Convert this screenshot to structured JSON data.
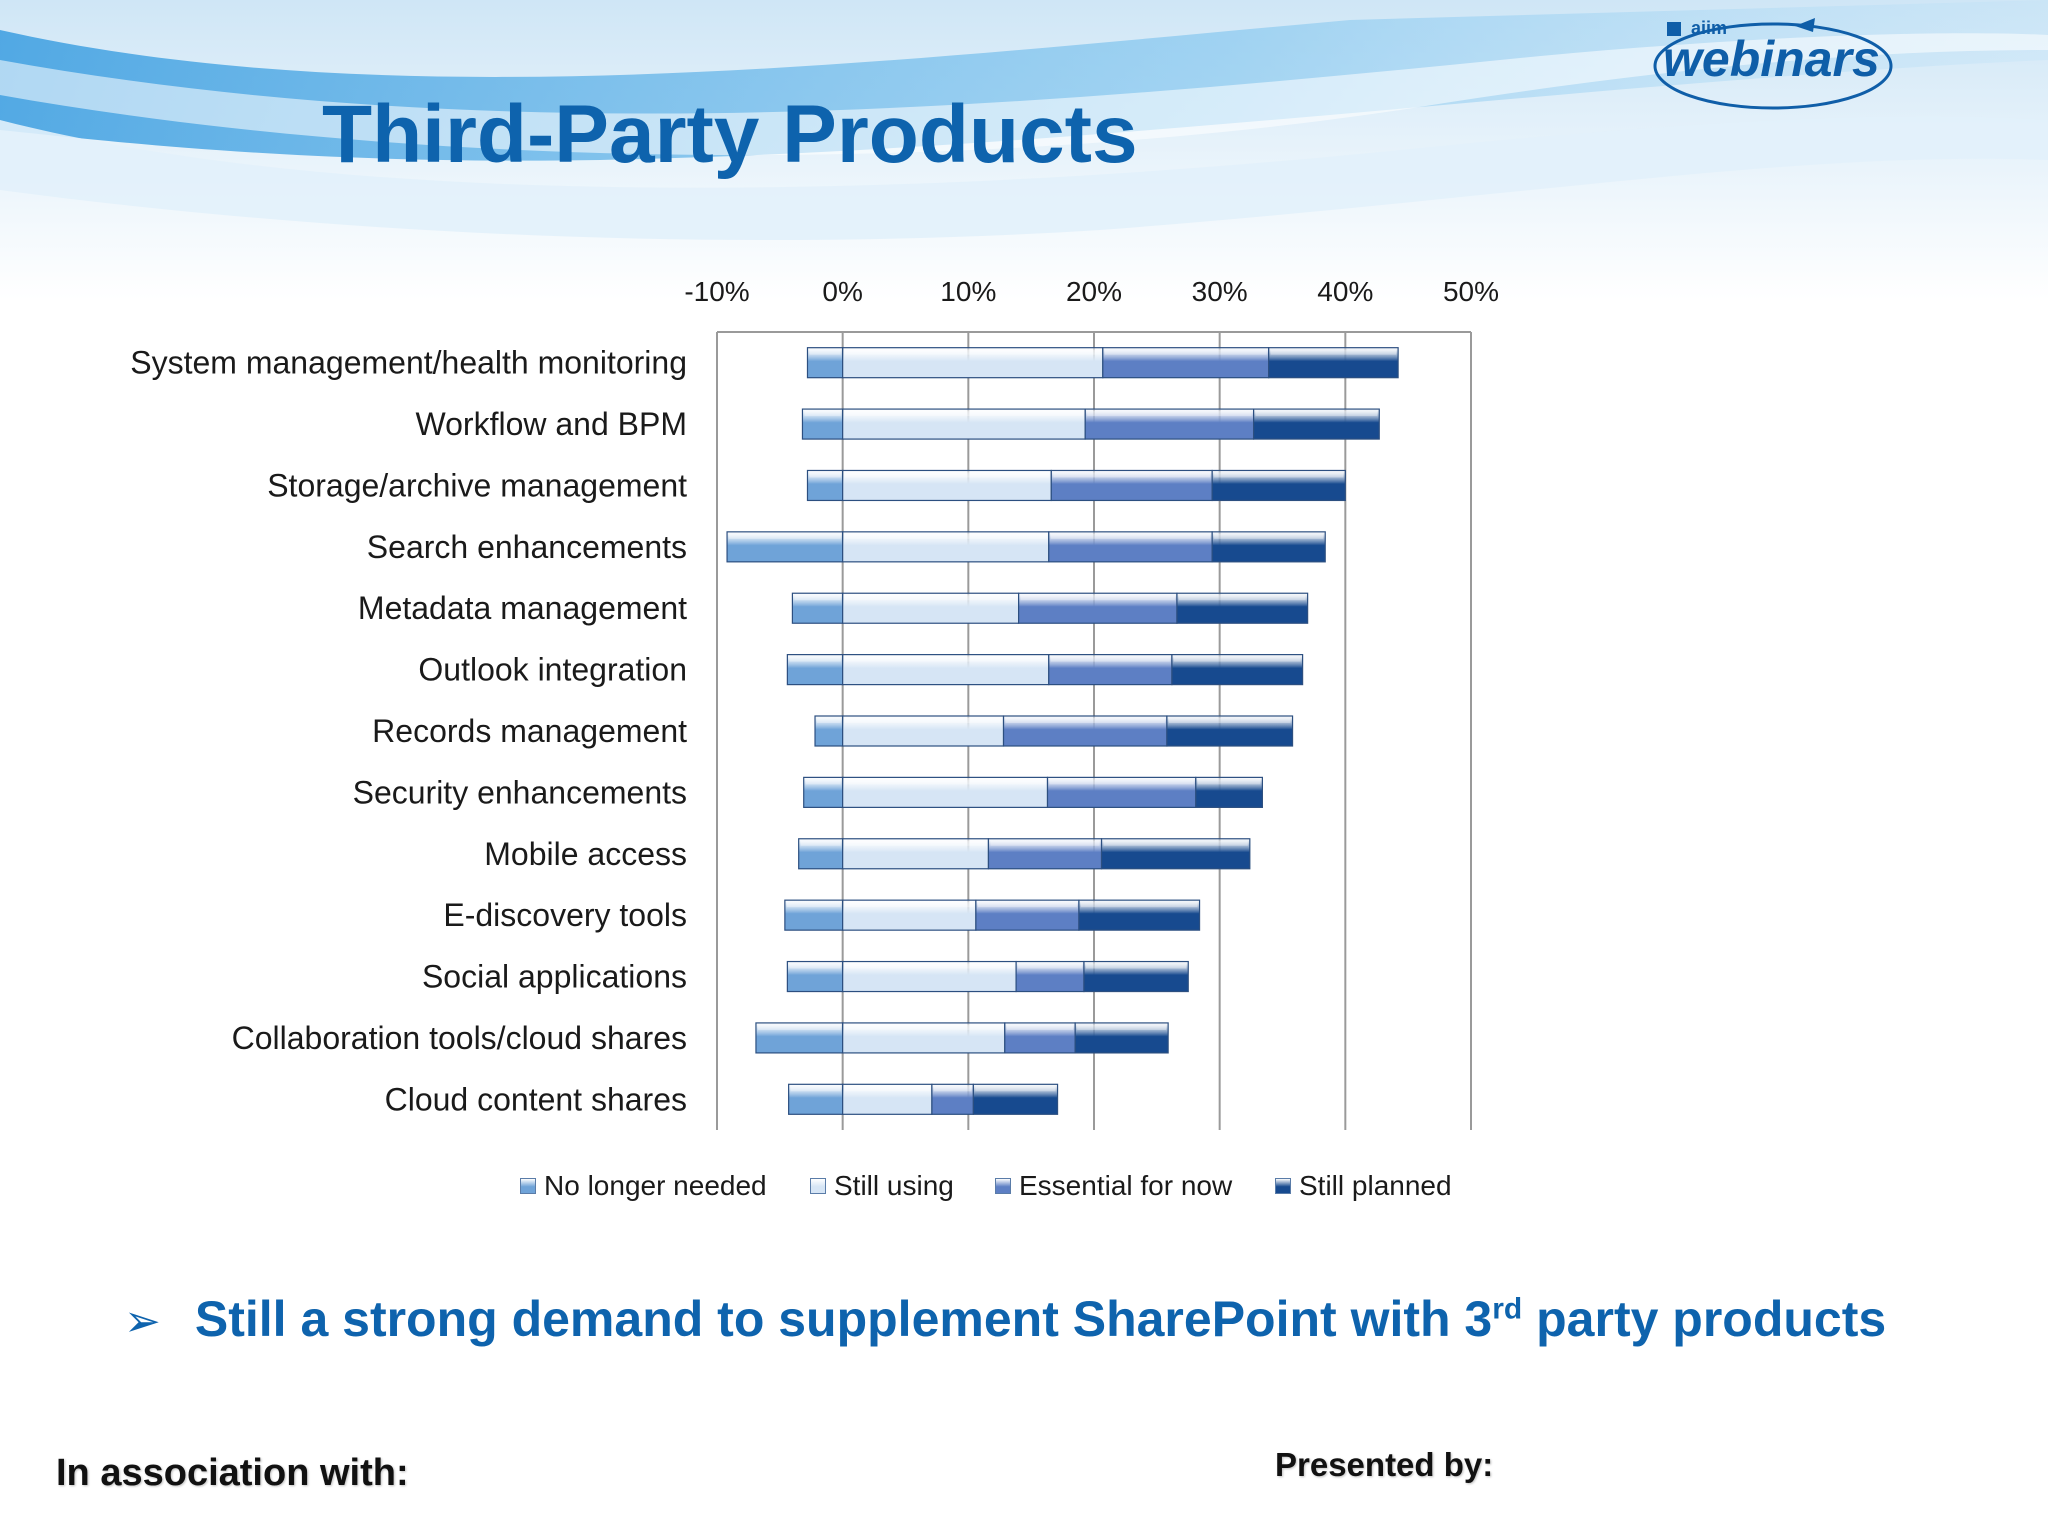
{
  "slide": {
    "title": "Third-Party Products",
    "bullet_prefix": "Still a strong demand to supplement SharePoint with 3",
    "bullet_sup": "rd",
    "bullet_suffix": " party products",
    "footer_left": "In association with:",
    "footer_right": "Presented by:"
  },
  "logo": {
    "small": "aiim",
    "main": "webinars",
    "color": "#0f5ea8"
  },
  "colors": {
    "title": "#0e63ad",
    "no_longer_needed": "#6fa3d8",
    "still_using": "#d6e5f5",
    "essential_for_now": "#5d7fc4",
    "still_planned": "#174a8f"
  },
  "chart_data": {
    "type": "bar",
    "orientation": "horizontal",
    "stacked": true,
    "title": "",
    "xlabel": "",
    "ylabel": "",
    "xlim": [
      -10,
      50
    ],
    "x_ticks": [
      "-10%",
      "0%",
      "10%",
      "20%",
      "30%",
      "40%",
      "50%"
    ],
    "x_tick_values": [
      -10,
      0,
      10,
      20,
      30,
      40,
      50
    ],
    "grid": true,
    "legend_position": "bottom",
    "categories": [
      "System management/health monitoring",
      "Workflow and BPM",
      "Storage/archive management",
      "Search enhancements",
      "Metadata management",
      "Outlook integration",
      "Records management",
      "Security enhancements",
      "Mobile access",
      "E-discovery tools",
      "Social applications",
      "Collaboration tools/cloud shares",
      "Cloud content shares"
    ],
    "series": [
      {
        "name": "No longer needed",
        "values": [
          -2.8,
          -3.2,
          -2.8,
          -9.2,
          -4.0,
          -4.4,
          -2.2,
          -3.1,
          -3.5,
          -4.6,
          -4.4,
          -6.9,
          -4.3
        ]
      },
      {
        "name": "Still using",
        "values": [
          20.7,
          19.3,
          16.6,
          16.4,
          14.0,
          16.4,
          12.8,
          16.3,
          11.6,
          10.6,
          13.8,
          12.9,
          7.1
        ]
      },
      {
        "name": "Essential for now",
        "values": [
          13.2,
          13.4,
          12.8,
          13.0,
          12.6,
          9.8,
          13.0,
          11.8,
          9.0,
          8.2,
          5.4,
          5.6,
          3.3
        ]
      },
      {
        "name": "Still planned",
        "values": [
          10.3,
          10.0,
          10.6,
          9.0,
          10.4,
          10.4,
          10.0,
          5.3,
          11.8,
          9.6,
          8.3,
          7.4,
          6.7
        ]
      }
    ]
  }
}
